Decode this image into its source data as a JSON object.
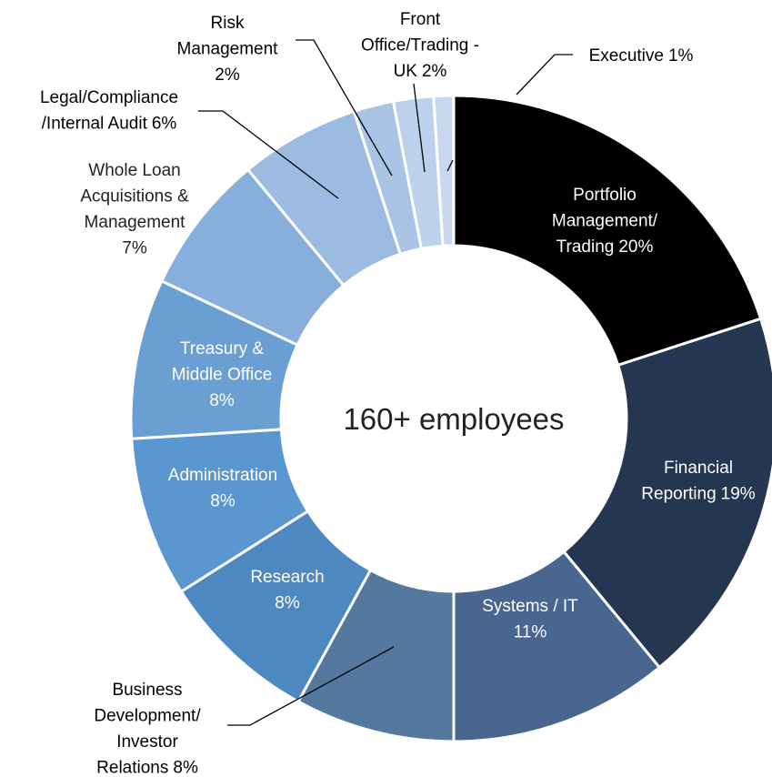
{
  "chart_data": {
    "type": "donut",
    "center_label": "160+ employees",
    "categories": [
      [
        "Portfolio",
        "Management/",
        "Trading"
      ],
      [
        "Financial",
        "Reporting"
      ],
      [
        "Systems / IT"
      ],
      [
        "Business",
        "Development/",
        "Investor",
        "Relations"
      ],
      [
        "Research"
      ],
      [
        "Administration"
      ],
      [
        "Treasury &",
        "Middle Office"
      ],
      [
        "Whole Loan",
        "Acquisitions &",
        "Management"
      ],
      [
        "Legal/Compliance",
        "/Internal Audit"
      ],
      [
        "Risk",
        "Management"
      ],
      [
        "Front",
        "Office/Trading -",
        "UK"
      ],
      [
        "Executive"
      ]
    ],
    "values": [
      20,
      19,
      11,
      8,
      8,
      8,
      8,
      7,
      6,
      2,
      2,
      1
    ],
    "value_labels": [
      "20%",
      "19%",
      "11%",
      "8%",
      "8%",
      "8%",
      "8%",
      "7%",
      "6%",
      "2%",
      "2%",
      "1%"
    ],
    "colors": [
      "#000000",
      "#253750",
      "#48668f",
      "#55789f",
      "#4d88c0",
      "#5a96cf",
      "#6a9fd4",
      "#88aedb",
      "#9cbbe0",
      "#a9c4e5",
      "#bcd1ec",
      "#c8d8ef"
    ]
  }
}
